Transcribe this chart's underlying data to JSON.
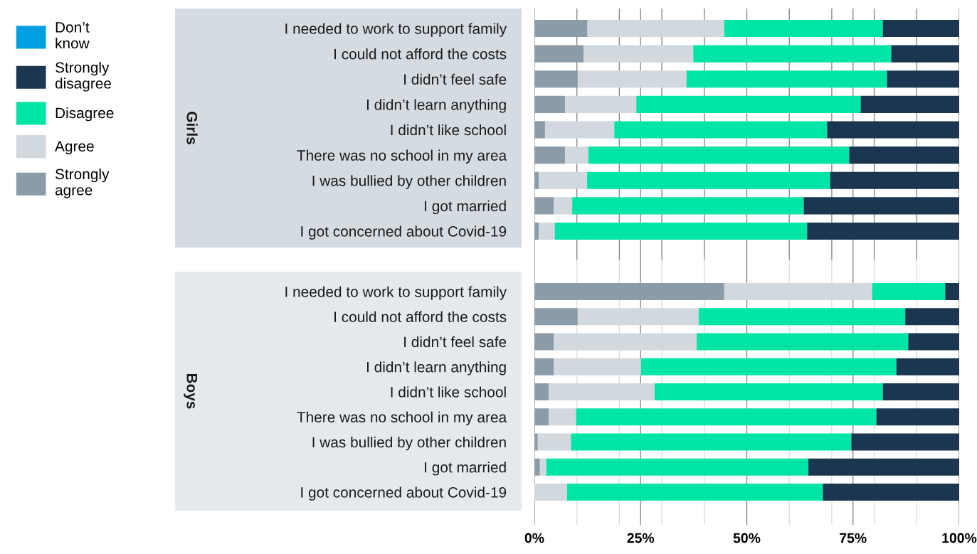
{
  "chart_data": [
    {
      "type": "bar",
      "orientation": "horizontal",
      "stacked": true,
      "title": "Girls",
      "legend": "left",
      "grid": "x",
      "tick_labels": "y",
      "categories": [
        "I needed to work to support family",
        "I could not afford the costs",
        "I didn’t feel safe",
        "I didn’t learn anything",
        "I didn’t like school",
        "There was no school in my area",
        "I was bullied by other children",
        "I got married",
        "I got concerned about Covid-19"
      ],
      "xlim": [
        0,
        100
      ],
      "xticks": [
        0,
        10,
        20,
        25,
        30,
        40,
        50,
        60,
        70,
        75,
        80,
        90,
        100
      ],
      "series": [
        {
          "name": "Strongly agree",
          "color": "#8c9ba8",
          "values": [
            12.5,
            11.6,
            10.2,
            7.2,
            2.5,
            7.2,
            1.0,
            4.6,
            1.0
          ]
        },
        {
          "name": "Agree",
          "color": "#d1d8de",
          "values": [
            32.2,
            25.8,
            25.6,
            16.8,
            16.3,
            5.5,
            11.4,
            4.3,
            3.8
          ]
        },
        {
          "name": "Disagree",
          "color": "#00e5a6",
          "values": [
            37.3,
            46.6,
            47.2,
            52.8,
            50.1,
            61.4,
            57.2,
            54.5,
            59.4
          ]
        },
        {
          "name": "Strongly disagree",
          "color": "#1a3650",
          "values": [
            18.0,
            16.0,
            17.0,
            23.2,
            31.1,
            25.9,
            30.4,
            36.6,
            35.8
          ]
        },
        {
          "name": "Don’t know",
          "color": "#009fe3",
          "values": [
            0,
            0,
            0,
            0,
            0,
            0,
            0,
            0,
            0
          ]
        }
      ]
    },
    {
      "type": "bar",
      "orientation": "horizontal",
      "stacked": true,
      "title": "Boys",
      "grid": "x",
      "categories": [
        "I needed to work to support family",
        "I could not afford the costs",
        "I didn’t feel safe",
        "I didn’t learn anything",
        "I didn’t like school",
        "There was no school in my area",
        "I was bullied by other children",
        "I got married",
        "I got concerned about Covid-19"
      ],
      "xlim": [
        0,
        100
      ],
      "xticks": [
        {
          "value": 0,
          "label": "0%"
        },
        {
          "value": 10,
          "label": null
        },
        {
          "value": 20,
          "label": null
        },
        {
          "value": 25,
          "label": "25%"
        },
        {
          "value": 30,
          "label": null
        },
        {
          "value": 40,
          "label": null
        },
        {
          "value": 50,
          "label": "50%"
        },
        {
          "value": 60,
          "label": null
        },
        {
          "value": 70,
          "label": null
        },
        {
          "value": 75,
          "label": "75%"
        },
        {
          "value": 80,
          "label": null
        },
        {
          "value": 90,
          "label": null
        },
        {
          "value": 100,
          "label": "100%"
        }
      ],
      "series": [
        {
          "color": "#8c9ba8",
          "values": [
            44.7,
            10.2,
            4.6,
            4.6,
            3.4,
            3.4,
            0.8,
            1.3,
            0
          ]
        },
        {
          "color": "#d1d8de",
          "values": [
            34.8,
            28.5,
            33.6,
            20.5,
            24.9,
            6.4,
            7.8,
            1.5,
            7.7
          ]
        },
        {
          "color": "#00e5a6",
          "values": [
            17.2,
            48.6,
            49.8,
            60.1,
            53.7,
            70.7,
            66.0,
            61.7,
            60.2
          ]
        },
        {
          "color": "#1a3650",
          "values": [
            3.3,
            12.7,
            12.0,
            14.8,
            18.0,
            19.5,
            25.4,
            35.5,
            32.1
          ]
        },
        {
          "color": "#009fe3",
          "values": [
            0,
            0,
            0,
            0,
            0,
            0,
            0,
            0,
            0
          ]
        }
      ]
    }
  ]
}
